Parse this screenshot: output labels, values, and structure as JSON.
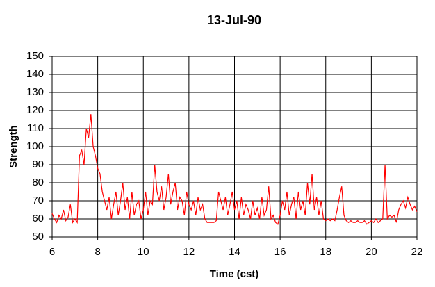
{
  "chart_data": {
    "type": "line",
    "title": "13-Jul-90",
    "xlabel": "Time (cst)",
    "ylabel": "Strength",
    "xlim": [
      6,
      22
    ],
    "xticks": [
      6,
      8,
      10,
      12,
      14,
      16,
      18,
      20,
      22
    ],
    "ylim": [
      50,
      150
    ],
    "yticks": [
      50,
      60,
      70,
      80,
      90,
      100,
      110,
      120,
      130,
      140,
      150
    ],
    "grid": true,
    "x": [
      6,
      6.1,
      6.2,
      6.3,
      6.4,
      6.5,
      6.6,
      6.7,
      6.8,
      6.9,
      7,
      7.1,
      7.2,
      7.3,
      7.4,
      7.5,
      7.6,
      7.7,
      7.8,
      7.9,
      8,
      8.1,
      8.2,
      8.3,
      8.4,
      8.5,
      8.6,
      8.7,
      8.8,
      8.9,
      9,
      9.1,
      9.2,
      9.3,
      9.4,
      9.5,
      9.6,
      9.7,
      9.8,
      9.9,
      10,
      10.1,
      10.2,
      10.3,
      10.4,
      10.5,
      10.6,
      10.7,
      10.8,
      10.9,
      11,
      11.1,
      11.2,
      11.3,
      11.4,
      11.5,
      11.6,
      11.7,
      11.8,
      11.9,
      12,
      12.1,
      12.2,
      12.3,
      12.4,
      12.5,
      12.6,
      12.7,
      12.8,
      12.9,
      13,
      13.1,
      13.2,
      13.3,
      13.4,
      13.5,
      13.6,
      13.7,
      13.8,
      13.9,
      14,
      14.1,
      14.2,
      14.3,
      14.4,
      14.5,
      14.6,
      14.7,
      14.8,
      14.9,
      15,
      15.1,
      15.2,
      15.3,
      15.4,
      15.5,
      15.6,
      15.7,
      15.8,
      15.9,
      16,
      16.1,
      16.2,
      16.3,
      16.4,
      16.5,
      16.6,
      16.7,
      16.8,
      16.9,
      17,
      17.1,
      17.2,
      17.3,
      17.4,
      17.5,
      17.6,
      17.7,
      17.8,
      17.9,
      18,
      18.1,
      18.2,
      18.3,
      18.4,
      18.5,
      18.6,
      18.7,
      18.8,
      18.9,
      19,
      19.1,
      19.2,
      19.3,
      19.4,
      19.5,
      19.6,
      19.7,
      19.8,
      19.9,
      20,
      20.1,
      20.2,
      20.3,
      20.4,
      20.5,
      20.6,
      20.7,
      20.8,
      20.9,
      21,
      21.1,
      21.2,
      21.3,
      21.4,
      21.5,
      21.6,
      21.7,
      21.8,
      21.9,
      22
    ],
    "series": [
      {
        "name": "Strength",
        "color": "#ff0000",
        "values": [
          63,
          60,
          58,
          62,
          60,
          65,
          59,
          61,
          68,
          58,
          60,
          58,
          95,
          98,
          90,
          110,
          105,
          118,
          100,
          95,
          88,
          85,
          75,
          70,
          65,
          72,
          60,
          68,
          75,
          62,
          70,
          80,
          65,
          72,
          60,
          75,
          62,
          68,
          70,
          60,
          65,
          75,
          62,
          70,
          68,
          90,
          75,
          70,
          78,
          65,
          72,
          85,
          68,
          75,
          80,
          65,
          72,
          70,
          62,
          75,
          68,
          65,
          70,
          62,
          72,
          65,
          68,
          60,
          58,
          58,
          58,
          58,
          59,
          75,
          70,
          65,
          72,
          62,
          68,
          75,
          65,
          70,
          60,
          72,
          62,
          68,
          65,
          60,
          70,
          62,
          66,
          60,
          72,
          62,
          65,
          78,
          60,
          62,
          58,
          57,
          62,
          70,
          65,
          75,
          62,
          68,
          72,
          60,
          75,
          65,
          70,
          62,
          80,
          68,
          85,
          65,
          72,
          62,
          70,
          60,
          59,
          60,
          59,
          60,
          59,
          65,
          72,
          78,
          62,
          59,
          58,
          59,
          58,
          58,
          59,
          58,
          58,
          59,
          57,
          58,
          59,
          58,
          60,
          58,
          59,
          60,
          90,
          60,
          62,
          61,
          62,
          58,
          65,
          68,
          70,
          66,
          72,
          68,
          65,
          67,
          64
        ]
      }
    ]
  }
}
